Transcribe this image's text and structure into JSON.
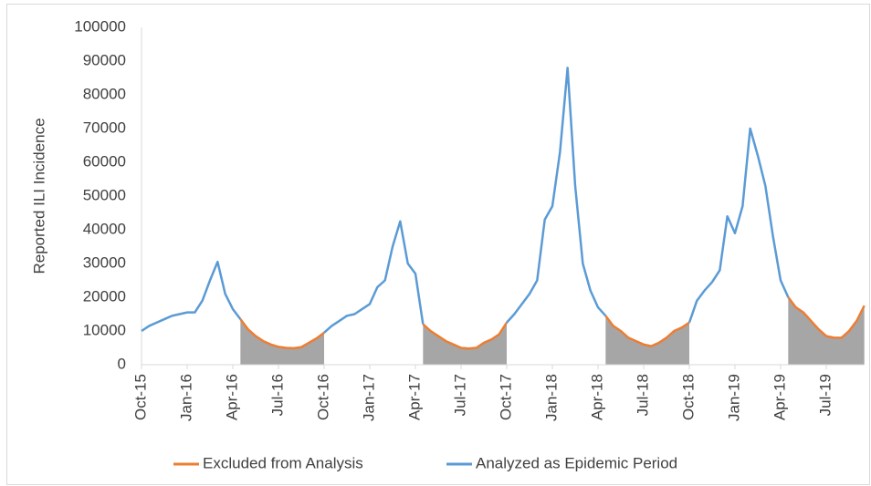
{
  "chart_data": {
    "type": "line",
    "y_label": "Reported ILI Incidence",
    "categories": [
      "Oct-15",
      null,
      null,
      null,
      null,
      null,
      "Jan-16",
      null,
      null,
      null,
      null,
      null,
      "Apr-16",
      null,
      null,
      null,
      null,
      null,
      "Jul-16",
      null,
      null,
      null,
      null,
      null,
      "Oct-16",
      null,
      null,
      null,
      null,
      null,
      "Jan-17",
      null,
      null,
      null,
      null,
      null,
      "Apr-17",
      null,
      null,
      null,
      null,
      null,
      "Jul-17",
      null,
      null,
      null,
      null,
      null,
      "Oct-17",
      null,
      null,
      null,
      null,
      null,
      "Jan-18",
      null,
      null,
      null,
      null,
      null,
      "Apr-18",
      null,
      null,
      null,
      null,
      null,
      "Jul-18",
      null,
      null,
      null,
      null,
      null,
      "Oct-18",
      null,
      null,
      null,
      null,
      null,
      "Jan-19",
      null,
      null,
      null,
      null,
      null,
      "Apr-19",
      null,
      null,
      null,
      null,
      null,
      "Jul-19",
      null,
      null,
      null,
      null,
      null
    ],
    "series": [
      {
        "name": "Excluded from Analysis",
        "color": "#ed7d31",
        "fill": "#a6a6a6",
        "values": [
          null,
          null,
          null,
          null,
          null,
          null,
          null,
          null,
          null,
          null,
          null,
          null,
          null,
          13500,
          10500,
          8500,
          7000,
          6000,
          5300,
          5000,
          4900,
          5200,
          6500,
          7800,
          9500,
          null,
          null,
          null,
          null,
          null,
          null,
          null,
          null,
          null,
          null,
          null,
          null,
          12000,
          10000,
          8500,
          7000,
          6000,
          5000,
          4800,
          5000,
          6500,
          7500,
          9000,
          12500,
          null,
          null,
          null,
          null,
          null,
          null,
          null,
          null,
          null,
          null,
          null,
          null,
          14500,
          11500,
          10000,
          8000,
          7000,
          6000,
          5500,
          6500,
          8000,
          10000,
          11000,
          12500,
          null,
          null,
          null,
          null,
          null,
          null,
          null,
          null,
          null,
          null,
          null,
          null,
          20000,
          17000,
          15500,
          13000,
          10500,
          8500,
          8000,
          8000,
          10000,
          13000,
          17500
        ]
      },
      {
        "name": "Analyzed as Epidemic Period",
        "color": "#5b9bd5",
        "values": [
          10000,
          11500,
          12500,
          13500,
          14500,
          15000,
          15500,
          15500,
          19000,
          25000,
          30500,
          21000,
          16500,
          13500,
          null,
          null,
          null,
          null,
          null,
          null,
          null,
          null,
          null,
          null,
          9500,
          11500,
          13000,
          14500,
          15000,
          16500,
          18000,
          23000,
          25000,
          35000,
          42500,
          30000,
          27000,
          12000,
          null,
          null,
          null,
          null,
          null,
          null,
          null,
          null,
          null,
          null,
          12500,
          15000,
          18000,
          21000,
          25000,
          43000,
          47000,
          63000,
          88000,
          53000,
          30000,
          22000,
          17000,
          14500,
          null,
          null,
          null,
          null,
          null,
          null,
          null,
          null,
          null,
          null,
          12500,
          19000,
          22000,
          24500,
          28000,
          44000,
          39000,
          47000,
          70000,
          62000,
          53000,
          38000,
          25000,
          20000,
          null,
          null,
          null,
          null,
          null,
          null,
          null,
          null,
          null,
          null
        ]
      }
    ],
    "ylim": [
      0,
      100000
    ],
    "yticks": [
      0,
      10000,
      20000,
      30000,
      40000,
      50000,
      60000,
      70000,
      80000,
      90000,
      100000
    ],
    "grid": false,
    "legend": "bottom"
  }
}
